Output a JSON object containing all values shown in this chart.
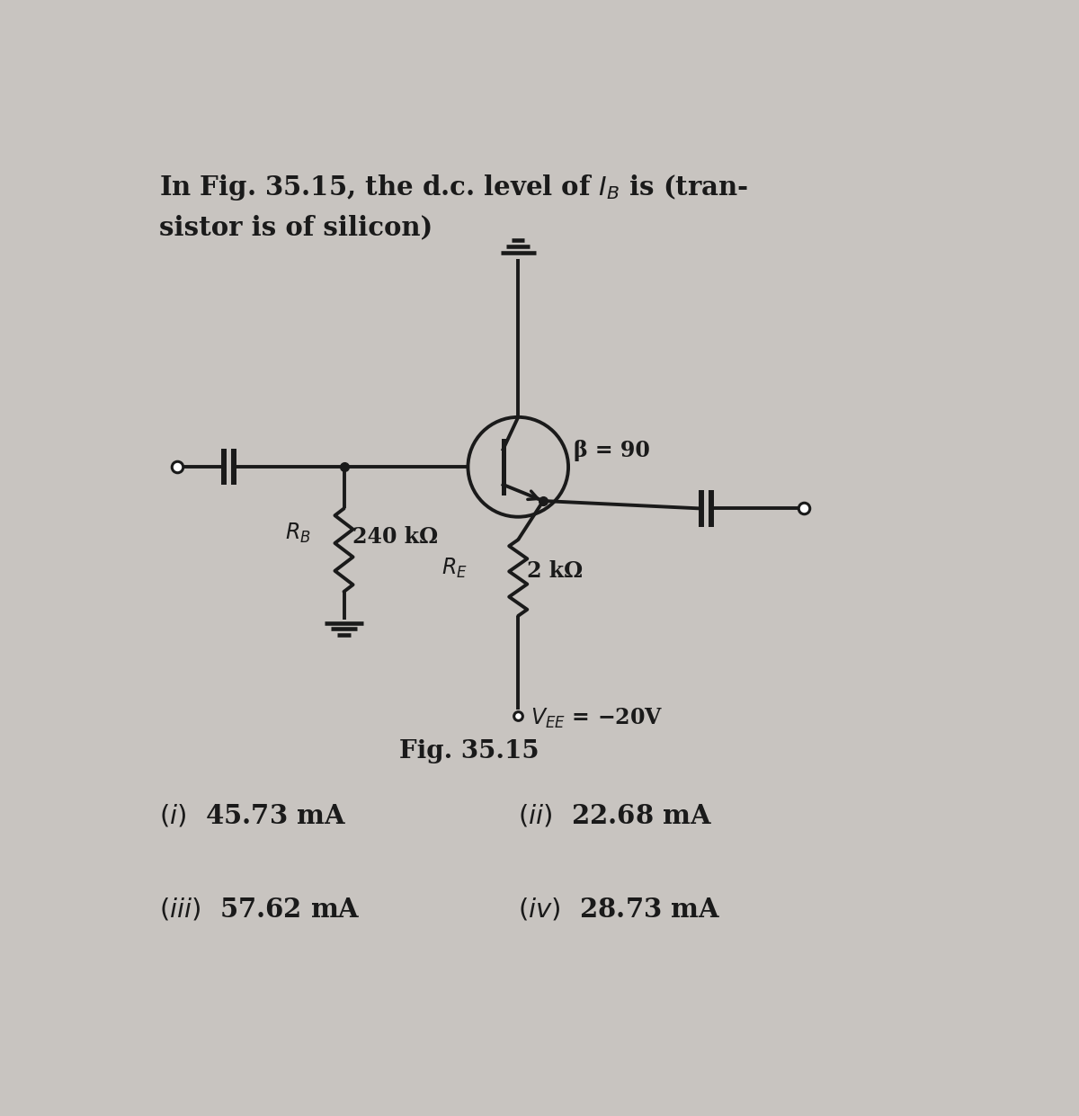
{
  "bg_color": "#c8c4c0",
  "title_line1": "In Fig. 35.15, the d.c. level of $I_B$ is (tran-",
  "title_line2": "sistor is of silicon)",
  "fig_label": "Fig. 35.15",
  "beta_label": "β = 90",
  "RB_label": "$R_B$",
  "RB_val": "240 kΩ",
  "RE_label": "$R_E$",
  "RE_val": "2 kΩ",
  "VEE_label": "$V_{EE}$ = −20V",
  "opt_i": "$(i)$  45.73 mA",
  "opt_ii": "$(ii)$  22.68 mA",
  "opt_iii": "$(iii)$  57.62 mA",
  "opt_iv": "$(iv)$  28.73 mA",
  "line_color": "#1a1a1a",
  "text_color": "#1a1a1a",
  "transistor_r": 0.72
}
